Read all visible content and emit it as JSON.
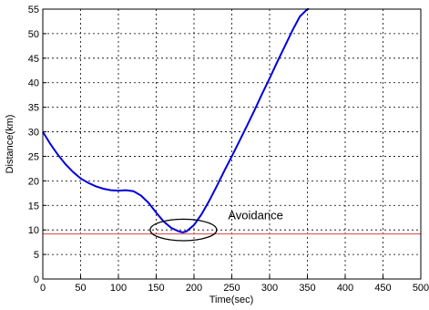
{
  "chart_data": {
    "type": "line",
    "xlabel": "Time(sec)",
    "ylabel": "Distance(km)",
    "xlim": [
      0,
      500
    ],
    "ylim": [
      0,
      55
    ],
    "xticks": [
      0,
      50,
      100,
      150,
      200,
      250,
      300,
      350,
      400,
      450,
      500
    ],
    "yticks": [
      0,
      5,
      10,
      15,
      20,
      25,
      30,
      35,
      40,
      45,
      50,
      55
    ],
    "grid": true,
    "series": [
      {
        "color": "#0000dd",
        "x": [
          0,
          10,
          20,
          30,
          40,
          50,
          60,
          70,
          80,
          90,
          100,
          110,
          120,
          130,
          140,
          150,
          160,
          170,
          180,
          185,
          190,
          200,
          210,
          220,
          230,
          240,
          250,
          260,
          270,
          280,
          290,
          300,
          310,
          320,
          330,
          340,
          350,
          352
        ],
        "y": [
          30,
          27.5,
          25.3,
          23.4,
          21.8,
          20.5,
          19.6,
          18.9,
          18.4,
          18.1,
          18.0,
          18.1,
          17.9,
          17.0,
          15.5,
          13.5,
          11.7,
          10.4,
          9.7,
          9.5,
          9.7,
          11.0,
          13.2,
          15.9,
          18.9,
          22.0,
          25.0,
          28.1,
          31.2,
          34.4,
          37.7,
          40.9,
          44.2,
          47.4,
          50.6,
          53.5,
          55.3,
          55.6
        ]
      }
    ],
    "reference_lines": [
      {
        "orientation": "horizontal",
        "y": 9.2,
        "color": "#e06060"
      }
    ],
    "annotations": [
      {
        "text": "Avoidance",
        "x": 245,
        "y": 12.2
      }
    ],
    "highlight_ellipse": {
      "cx": 186,
      "cy": 10.0,
      "rx": 44,
      "ry": 2.2
    }
  }
}
